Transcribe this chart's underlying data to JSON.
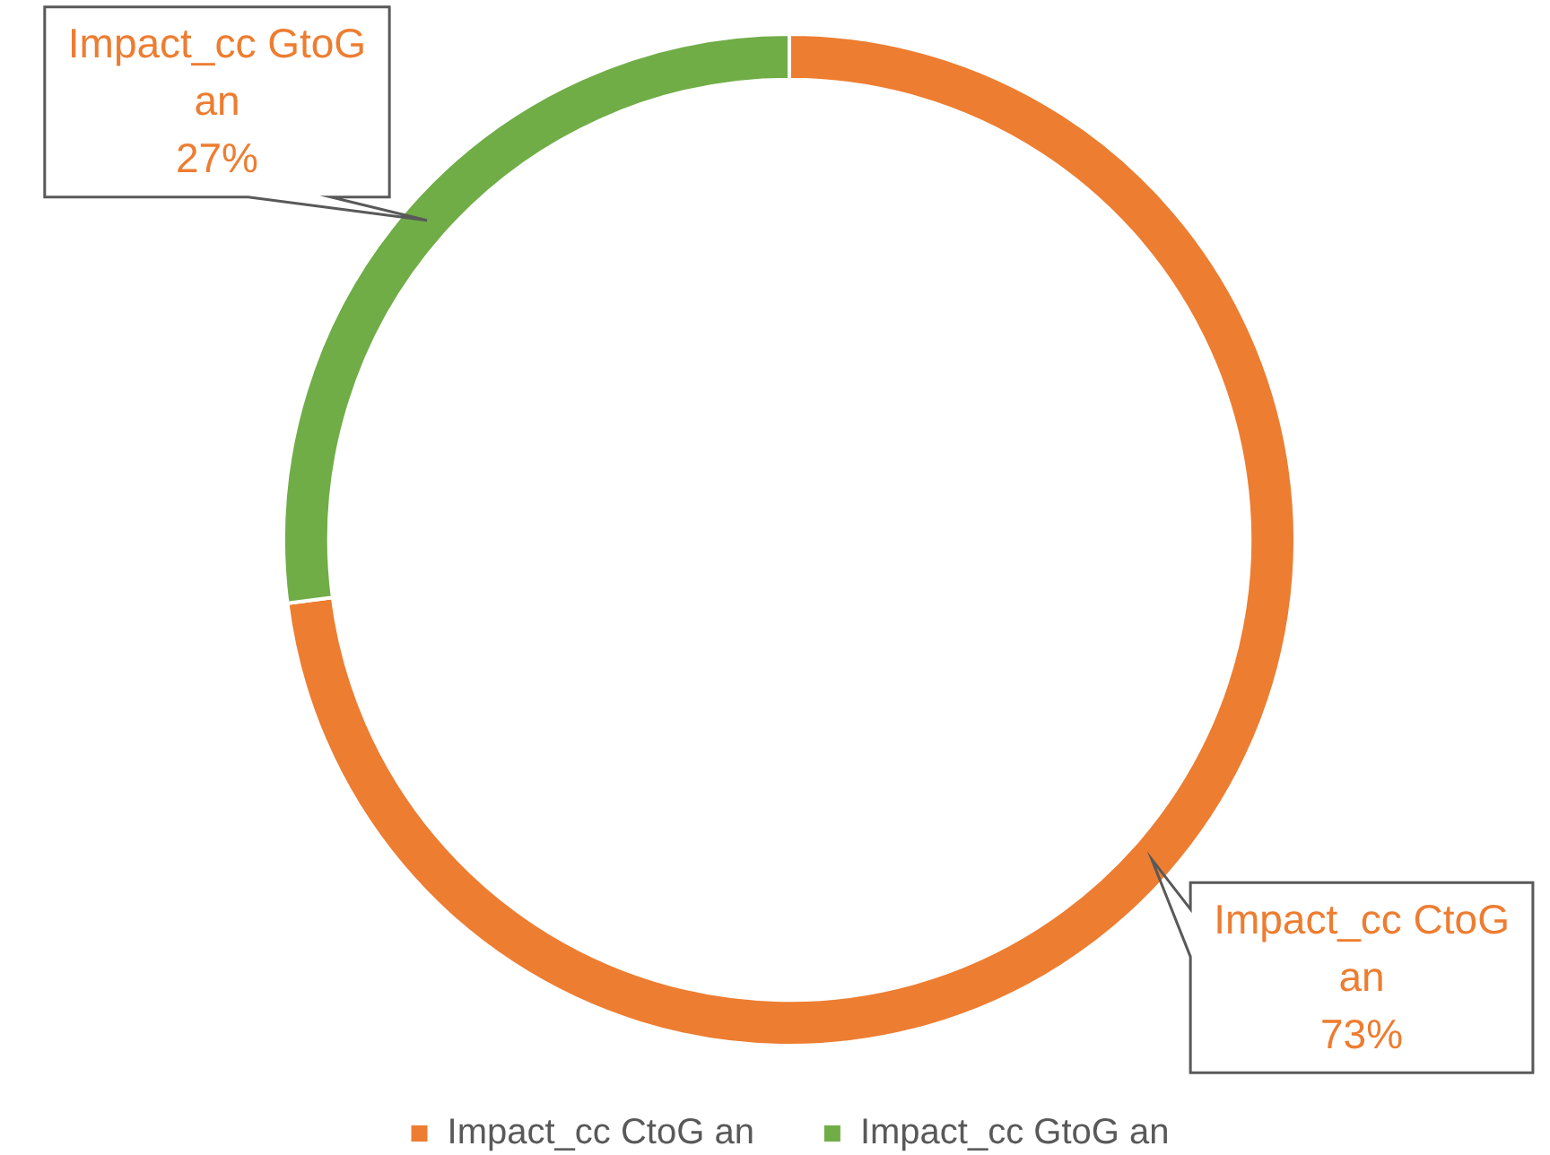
{
  "chart_data": {
    "type": "donut",
    "categories": [
      "Impact_cc CtoG an",
      "Impact_cc GtoG an"
    ],
    "values": [
      73,
      27
    ],
    "colors": [
      "#ed7d31",
      "#70ad47"
    ],
    "value_labels": [
      "73%",
      "27%"
    ],
    "legend": "bottom"
  }
}
